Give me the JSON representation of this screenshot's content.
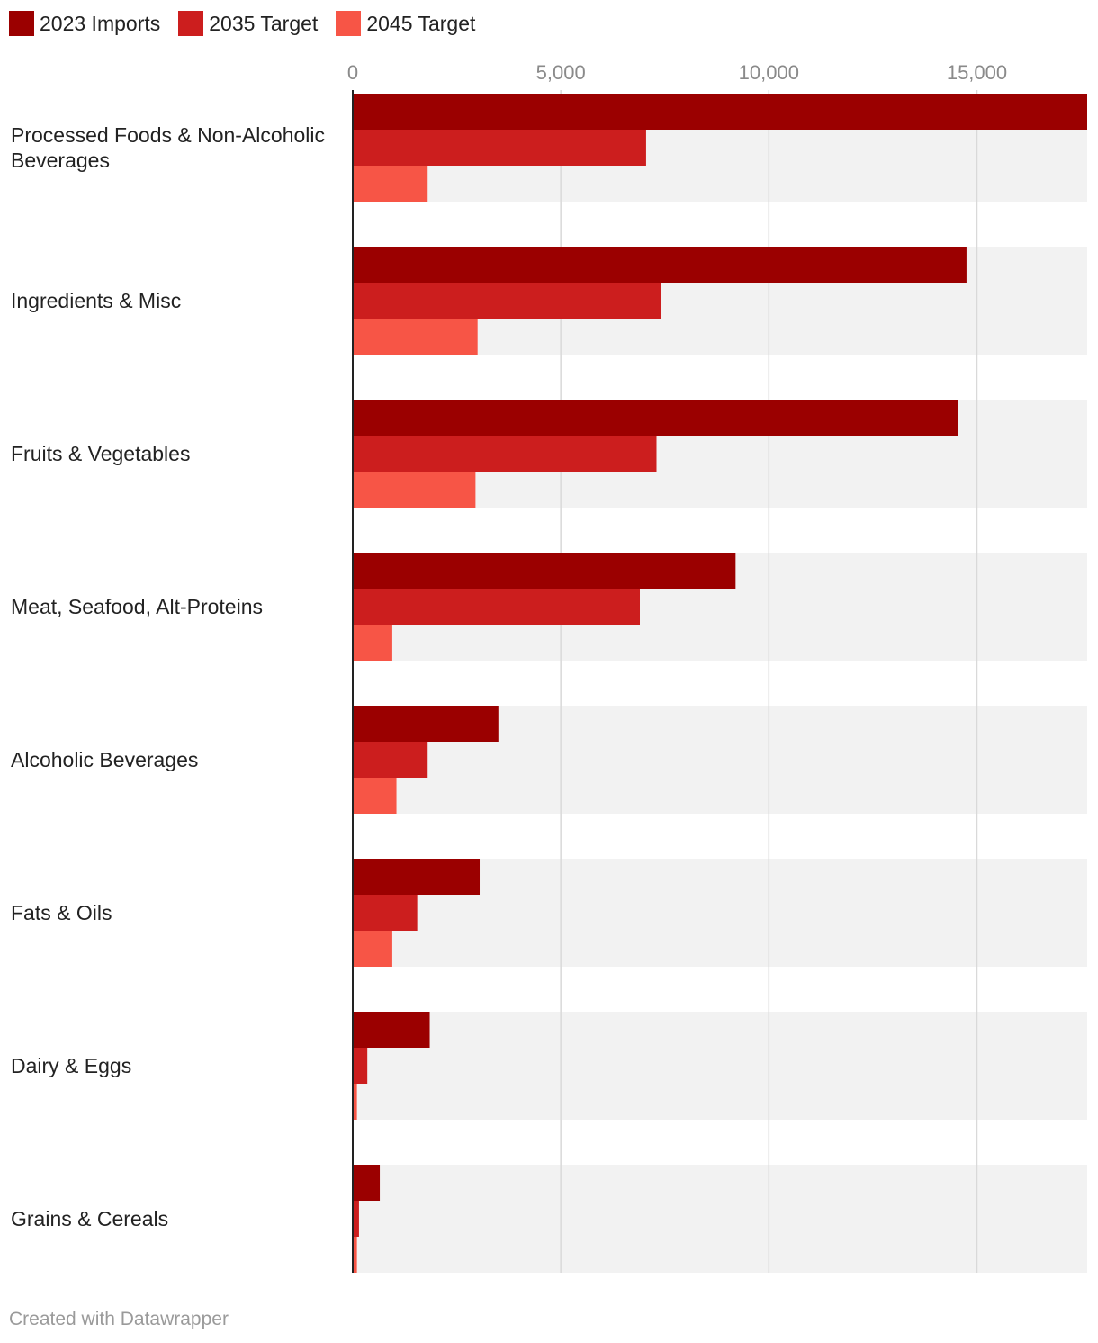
{
  "legend": [
    {
      "label": "2023 Imports",
      "color": "#9b0000"
    },
    {
      "label": "2035 Target",
      "color": "#cc1e1e"
    },
    {
      "label": "2045 Target",
      "color": "#f75546"
    }
  ],
  "footer": {
    "text": "Created with Datawrapper"
  },
  "chart_data": {
    "type": "bar",
    "orientation": "horizontal",
    "categories": [
      [
        "Processed Foods & Non-Alcoholic",
        "Beverages"
      ],
      [
        "Ingredients & Misc"
      ],
      [
        "Fruits & Vegetables"
      ],
      [
        "Meat, Seafood, Alt-Proteins"
      ],
      [
        "Alcoholic Beverages"
      ],
      [
        "Fats & Oils"
      ],
      [
        "Dairy & Eggs"
      ],
      [
        "Grains & Cereals"
      ]
    ],
    "series": [
      {
        "name": "2023 Imports",
        "color": "#9b0000",
        "values": [
          17650,
          14750,
          14550,
          9200,
          3500,
          3050,
          1850,
          650
        ]
      },
      {
        "name": "2035 Target",
        "color": "#cc1e1e",
        "values": [
          7050,
          7400,
          7300,
          6900,
          1800,
          1550,
          350,
          150
        ]
      },
      {
        "name": "2045 Target",
        "color": "#f75546",
        "values": [
          1800,
          3000,
          2950,
          950,
          1050,
          950,
          100,
          100
        ]
      }
    ],
    "xlim": [
      0,
      17650
    ],
    "xticks": [
      0,
      5000,
      10000,
      15000
    ],
    "xtick_labels": [
      "0",
      "5,000",
      "10,000",
      "15,000"
    ],
    "grid": true,
    "legend_position": "top-left"
  }
}
